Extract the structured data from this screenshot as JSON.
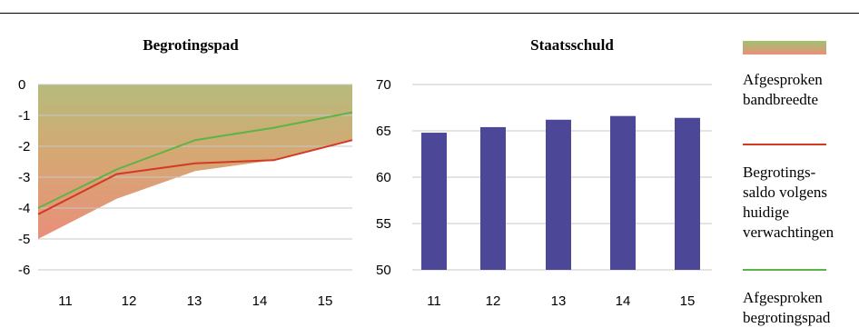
{
  "chart_data": [
    {
      "type": "area",
      "title": "Begrotingspad",
      "categories": [
        "11",
        "12",
        "13",
        "14",
        "15"
      ],
      "ylim": [
        -6,
        0
      ],
      "yticks": [
        "0",
        "-1",
        "-2",
        "-3",
        "-4",
        "-5",
        "-6"
      ],
      "grid": true,
      "band": {
        "name": "Afgesproken bandbreedte",
        "lower": [
          -5.0,
          -3.7,
          -2.8,
          -2.45,
          -1.8
        ],
        "upper": [
          0,
          0,
          0,
          0,
          0
        ]
      },
      "series": [
        {
          "name": "Begrotingssaldo volgens huidige verwachtingen",
          "color": "#d23a24",
          "values": [
            -4.2,
            -2.9,
            -2.55,
            -2.45,
            -1.8
          ]
        },
        {
          "name": "Afgesproken begrotingspad",
          "color": "#5db446",
          "values": [
            -4.0,
            -2.75,
            -1.8,
            -1.4,
            -0.9
          ]
        }
      ]
    },
    {
      "type": "bar",
      "title": "Staatsschuld",
      "categories": [
        "11",
        "12",
        "13",
        "14",
        "15"
      ],
      "values": [
        64.8,
        65.4,
        66.2,
        66.6,
        66.4
      ],
      "ylim": [
        50,
        70
      ],
      "yticks": [
        "70",
        "65",
        "60",
        "55",
        "50"
      ],
      "grid": true,
      "bar_color": "#4c4897"
    }
  ],
  "legend": {
    "band_label_line1": "Afgesproken",
    "band_label_line2": "bandbreedte",
    "red_label_line1": "Begrotings-",
    "red_label_line2": "saldo volgens",
    "red_label_line3": "huidige",
    "red_label_line4": "verwachtingen",
    "green_label_line1": "Afgesproken",
    "green_label_line2": "begrotingspad",
    "red_color": "#d23a24",
    "green_color": "#5db446"
  }
}
